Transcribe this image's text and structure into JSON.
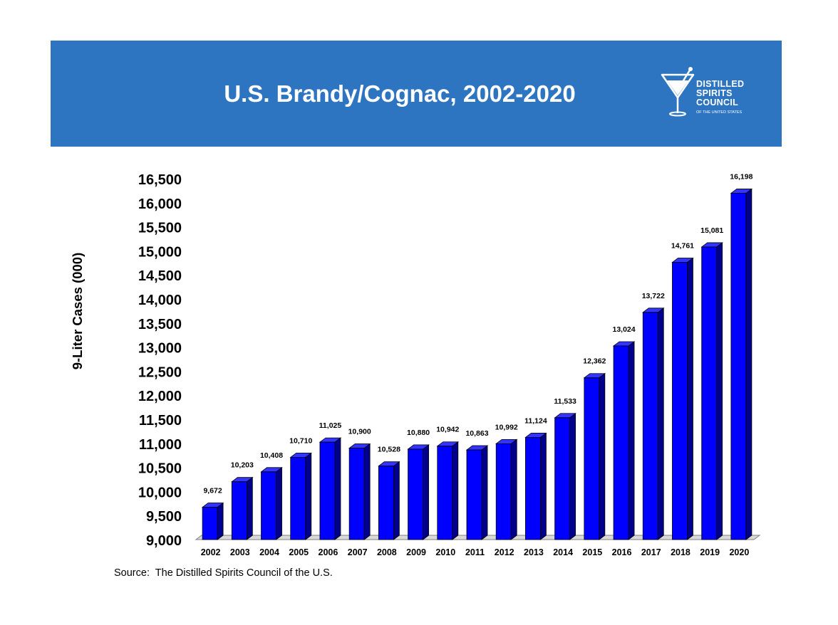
{
  "header": {
    "logo": {
      "name": "distilled-spirits-council-logo",
      "line1": "DISTILLED",
      "line2": "SPIRITS",
      "line3": "COUNCIL",
      "tagline": "OF THE UNITED STATES"
    }
  },
  "source_note": "Source:  The Distilled Spirits Council of the U.S.",
  "colors": {
    "header_band": "#2e75c1",
    "bar_front": "#0000ff",
    "bar_top": "#3434ff",
    "bar_side": "#00008c",
    "floor": "#d9d9d9"
  },
  "chart_data": {
    "type": "bar",
    "title": "U.S. Brandy/Cognac, 2002-2020",
    "xlabel": "",
    "ylabel": "9-Liter Cases (000)",
    "ylim": [
      9000,
      16500
    ],
    "yticks": [
      9000,
      9500,
      10000,
      10500,
      11000,
      11500,
      12000,
      12500,
      13000,
      13500,
      14000,
      14500,
      15000,
      15500,
      16000,
      16500
    ],
    "ytick_labels": [
      "9,000",
      "9,500",
      "10,000",
      "10,500",
      "11,000",
      "11,500",
      "12,000",
      "12,500",
      "13,000",
      "13,500",
      "14,000",
      "14,500",
      "15,000",
      "15,500",
      "16,000",
      "16,500"
    ],
    "grid": false,
    "categories": [
      "2002",
      "2003",
      "2004",
      "2005",
      "2006",
      "2007",
      "2008",
      "2009",
      "2010",
      "2011",
      "2012",
      "2013",
      "2014",
      "2015",
      "2016",
      "2017",
      "2018",
      "2019",
      "2020"
    ],
    "values": [
      9672,
      10203,
      10408,
      10710,
      11025,
      10900,
      10528,
      10880,
      10942,
      10863,
      10992,
      11124,
      11533,
      12362,
      13024,
      13722,
      14761,
      15081,
      16198
    ],
    "data_labels": [
      "9,672",
      "10,203",
      "10,408",
      "10,710",
      "11,025",
      "10,900",
      "10,528",
      "10,880",
      "10,942",
      "10,863",
      "10,992",
      "11,124",
      "11,533",
      "12,362",
      "13,024",
      "13,722",
      "14,761",
      "15,081",
      "16,198"
    ]
  }
}
